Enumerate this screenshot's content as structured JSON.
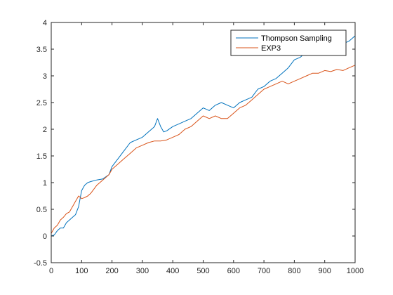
{
  "chart_data": {
    "type": "line",
    "title": "",
    "xlabel": "",
    "ylabel": "",
    "xlim": [
      0,
      1000
    ],
    "ylim": [
      -0.5,
      4
    ],
    "xticks": [
      0,
      100,
      200,
      300,
      400,
      500,
      600,
      700,
      800,
      900,
      1000
    ],
    "xtick_labels": [
      "0",
      "100",
      "200",
      "300",
      "400",
      "500",
      "600",
      "700",
      "800",
      "900",
      "1000"
    ],
    "yticks": [
      -0.5,
      0,
      0.5,
      1,
      1.5,
      2,
      2.5,
      3,
      3.5,
      4
    ],
    "ytick_labels": [
      "-0.5",
      "0",
      "0.5",
      "1",
      "1.5",
      "2",
      "2.5",
      "3",
      "3.5",
      "4"
    ],
    "grid": false,
    "legend_position": "top-right",
    "series": [
      {
        "name": "Thompson Sampling",
        "color": "#0072BD",
        "x": [
          0,
          10,
          20,
          30,
          40,
          50,
          60,
          70,
          80,
          90,
          100,
          110,
          120,
          130,
          150,
          170,
          190,
          200,
          220,
          240,
          260,
          280,
          300,
          320,
          340,
          350,
          360,
          370,
          380,
          400,
          420,
          440,
          460,
          480,
          500,
          520,
          540,
          560,
          580,
          600,
          620,
          640,
          660,
          680,
          700,
          720,
          740,
          760,
          780,
          800,
          820,
          840,
          860,
          880,
          900,
          920,
          940,
          960,
          980,
          990,
          1000
        ],
        "y": [
          0.0,
          0.02,
          0.1,
          0.15,
          0.15,
          0.25,
          0.3,
          0.35,
          0.4,
          0.55,
          0.85,
          0.95,
          1.0,
          1.02,
          1.05,
          1.07,
          1.15,
          1.3,
          1.45,
          1.6,
          1.75,
          1.8,
          1.85,
          1.95,
          2.05,
          2.2,
          2.05,
          1.95,
          1.97,
          2.05,
          2.1,
          2.15,
          2.2,
          2.3,
          2.4,
          2.35,
          2.45,
          2.5,
          2.45,
          2.4,
          2.5,
          2.55,
          2.6,
          2.75,
          2.8,
          2.9,
          2.95,
          3.05,
          3.15,
          3.3,
          3.35,
          3.45,
          3.4,
          3.45,
          3.55,
          3.5,
          3.55,
          3.6,
          3.65,
          3.7,
          3.75
        ]
      },
      {
        "name": "EXP3",
        "color": "#D95319",
        "x": [
          0,
          10,
          20,
          30,
          40,
          50,
          60,
          70,
          80,
          90,
          100,
          110,
          120,
          130,
          150,
          170,
          190,
          200,
          220,
          240,
          260,
          280,
          300,
          320,
          340,
          360,
          380,
          400,
          420,
          440,
          460,
          480,
          500,
          520,
          540,
          560,
          580,
          600,
          620,
          640,
          660,
          680,
          700,
          720,
          740,
          760,
          780,
          800,
          820,
          840,
          860,
          880,
          900,
          920,
          940,
          960,
          980,
          1000
        ],
        "y": [
          0.05,
          0.15,
          0.2,
          0.3,
          0.35,
          0.42,
          0.45,
          0.55,
          0.65,
          0.75,
          0.7,
          0.72,
          0.75,
          0.8,
          0.95,
          1.05,
          1.15,
          1.25,
          1.35,
          1.45,
          1.55,
          1.65,
          1.7,
          1.75,
          1.78,
          1.78,
          1.8,
          1.85,
          1.9,
          2.0,
          2.05,
          2.15,
          2.25,
          2.2,
          2.25,
          2.2,
          2.2,
          2.3,
          2.4,
          2.45,
          2.55,
          2.65,
          2.75,
          2.8,
          2.85,
          2.9,
          2.85,
          2.9,
          2.95,
          3.0,
          3.05,
          3.05,
          3.1,
          3.08,
          3.12,
          3.1,
          3.15,
          3.2
        ]
      }
    ]
  }
}
